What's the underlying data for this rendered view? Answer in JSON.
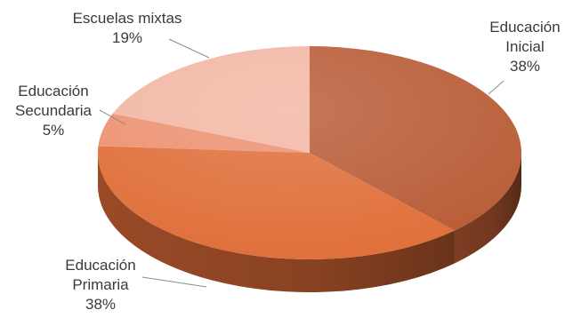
{
  "chart_data": {
    "type": "pie",
    "style": "3d",
    "title": "",
    "slices": [
      {
        "name": "Educación Inicial",
        "label_lines": [
          "Educación",
          "Inicial"
        ],
        "value": 38,
        "value_label": "38%",
        "color": "#b85a34"
      },
      {
        "name": "Educación Primaria",
        "label_lines": [
          "Educación",
          "Primaria"
        ],
        "value": 38,
        "value_label": "38%",
        "color": "#df6d37"
      },
      {
        "name": "Educación Secundaria",
        "label_lines": [
          "Educación",
          "Secundaria"
        ],
        "value": 5,
        "value_label": "5%",
        "color": "#ec9070"
      },
      {
        "name": "Escuelas mixtas",
        "label_lines": [
          "Escuelas mixtas"
        ],
        "value": 19,
        "value_label": "19%",
        "color": "#f2b6a3"
      }
    ],
    "legend": "none"
  }
}
